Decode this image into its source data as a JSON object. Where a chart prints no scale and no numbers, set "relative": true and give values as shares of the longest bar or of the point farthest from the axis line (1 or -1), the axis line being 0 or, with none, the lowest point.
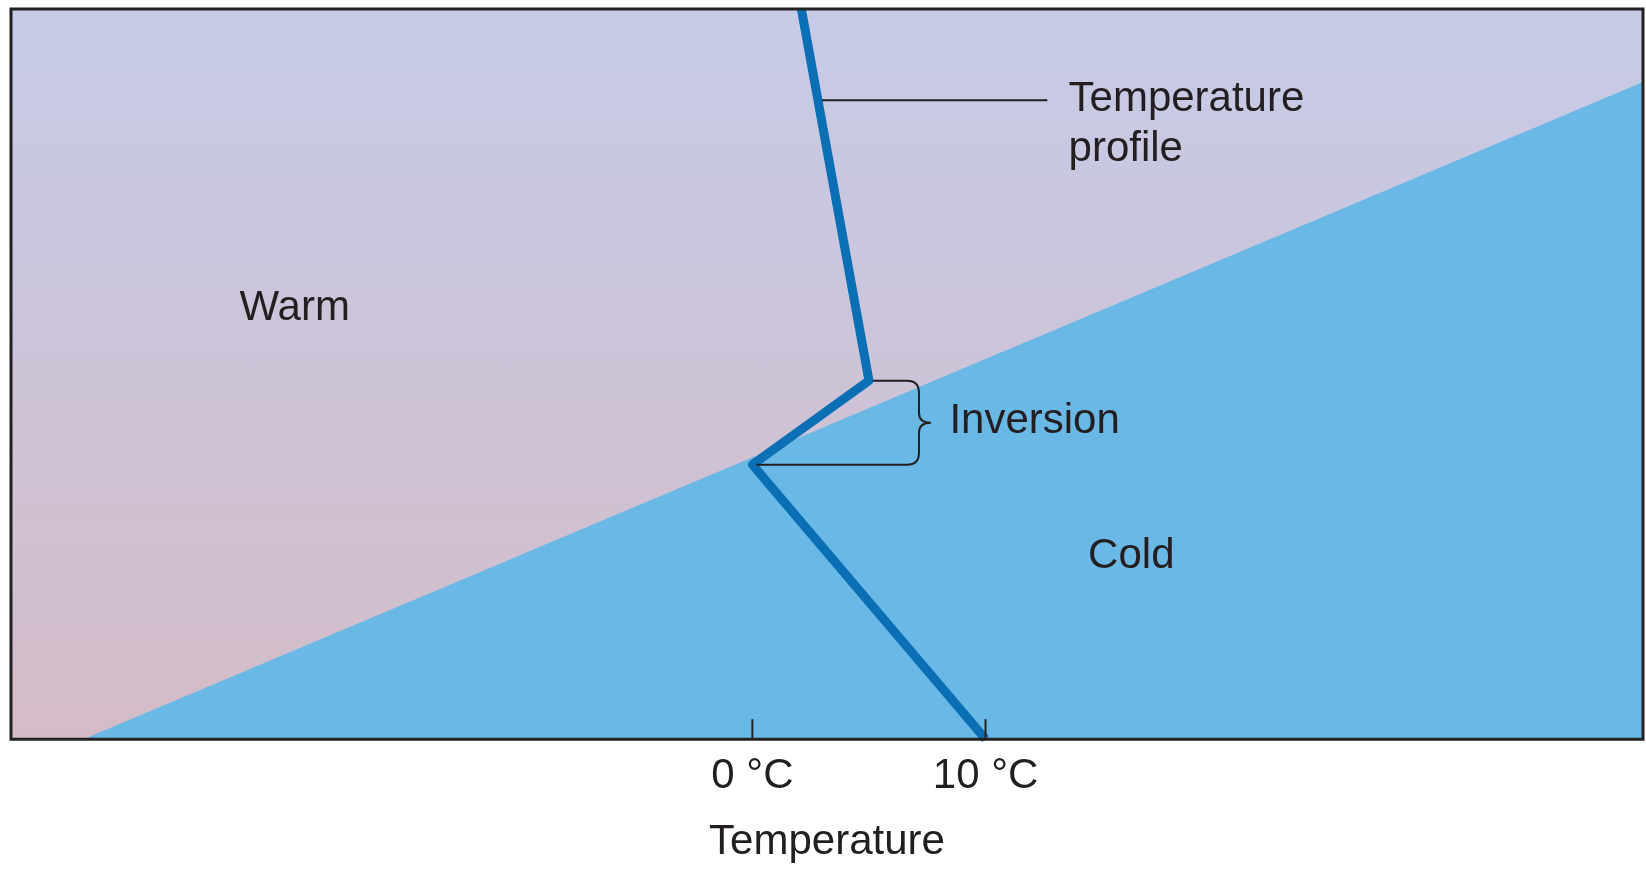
{
  "chart_data": {
    "type": "line",
    "relative": true,
    "xlabel": "Temperature",
    "xlim": [
      -31.8,
      38.2
    ],
    "xticks": [
      {
        "value": 0,
        "label": "0 °C"
      },
      {
        "value": 10,
        "label": "10 °C"
      }
    ],
    "tick_labels": "x",
    "grid": false,
    "legend": false,
    "marker": "none",
    "series": [
      {
        "type": "area",
        "color": "#6ab8e6",
        "x": [
          -28.7,
          38.2
        ],
        "values": [
          0,
          0.9
        ]
      },
      {
        "type": "line",
        "color": "#0a6fb5",
        "x": [
          10,
          0,
          5,
          2.1
        ],
        "values": [
          0,
          0.376,
          0.491,
          1
        ]
      }
    ],
    "annotations": [
      "Warm",
      "Temperature profile",
      "Inversion",
      "Cold"
    ]
  }
}
